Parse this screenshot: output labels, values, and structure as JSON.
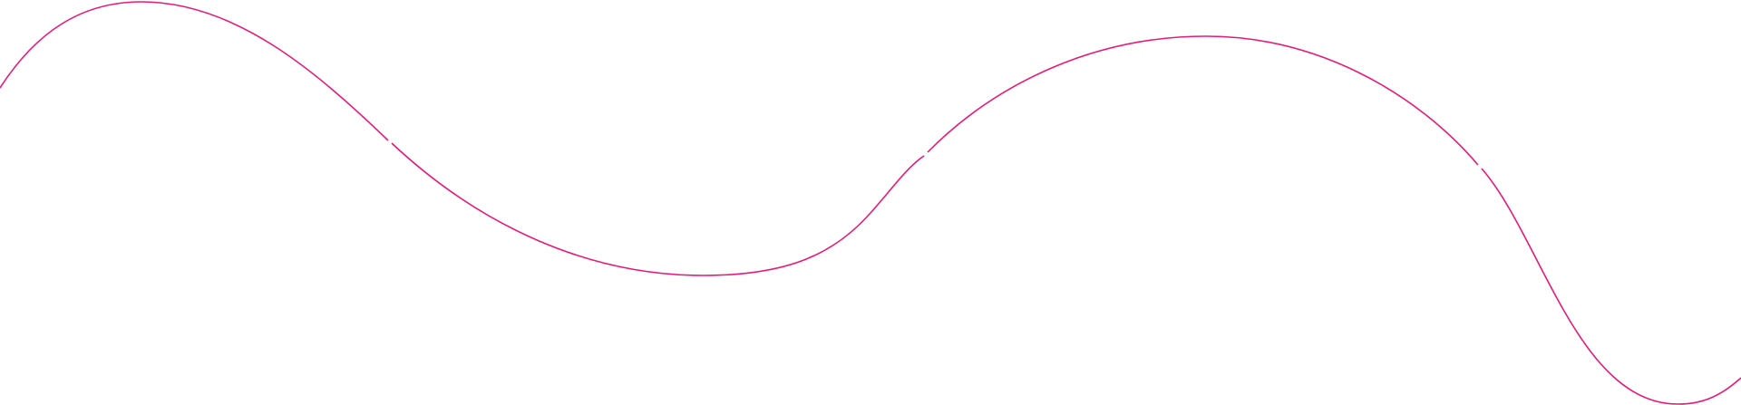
{
  "decoration": {
    "type": "wave-line",
    "stroke_color": "#e8197a",
    "background_color": "#ffffff"
  }
}
